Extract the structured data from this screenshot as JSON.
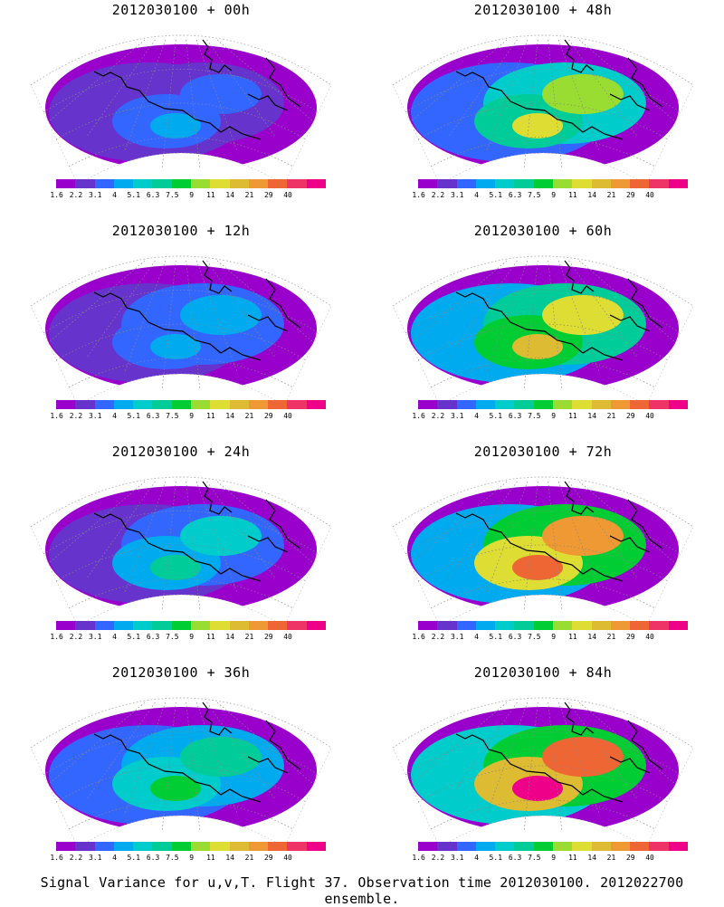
{
  "panels": [
    {
      "title": "2012030100 + 00h",
      "intensity": 0.5
    },
    {
      "title": "2012030100 + 48h",
      "intensity": 1.5
    },
    {
      "title": "2012030100 + 12h",
      "intensity": 0.6
    },
    {
      "title": "2012030100 + 60h",
      "intensity": 1.8
    },
    {
      "title": "2012030100 + 24h",
      "intensity": 0.9
    },
    {
      "title": "2012030100 + 72h",
      "intensity": 2.2
    },
    {
      "title": "2012030100 + 36h",
      "intensity": 1.2
    },
    {
      "title": "2012030100 + 84h",
      "intensity": 2.5
    }
  ],
  "colorbar": {
    "labels": [
      "1.6",
      "2.2",
      "3.1",
      "4",
      "5.1",
      "6.3",
      "7.5",
      "9",
      "11",
      "14",
      "21",
      "29",
      "40"
    ],
    "colors": [
      "#9900cc",
      "#6633cc",
      "#3366ff",
      "#00aaee",
      "#00cccc",
      "#00cc99",
      "#00cc33",
      "#99dd33",
      "#dddd33",
      "#ddbb33",
      "#ee9933",
      "#ee6633",
      "#ee3366",
      "#ee0088"
    ]
  },
  "caption": "Signal Variance for u,v,T. Flight 37. Observation time 2012030100. 2012022700 ensemble."
}
